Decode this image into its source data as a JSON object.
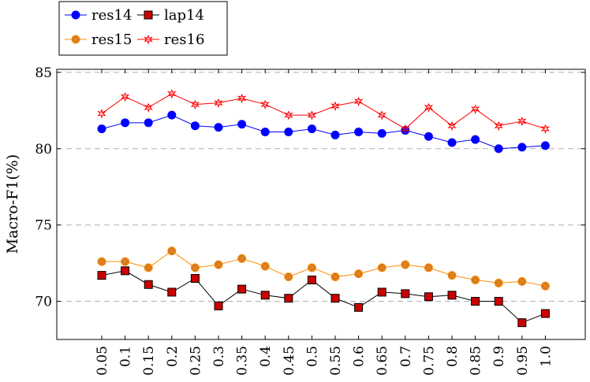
{
  "chart_data": {
    "type": "line",
    "title": "",
    "xlabel": "",
    "ylabel": "Macro-F1(%)",
    "x": [
      "0.05",
      "0.1",
      "0.15",
      "0.2",
      "0.25",
      "0.3",
      "0.35",
      "0.4",
      "0.45",
      "0.5",
      "0.55",
      "0.6",
      "0.65",
      "0.7",
      "0.75",
      "0.8",
      "0.85",
      "0.9",
      "0.95",
      "1.0"
    ],
    "ylim": [
      67.5,
      85.2
    ],
    "yticks": [
      70,
      75,
      80,
      85
    ],
    "grid": "horizontal dashed",
    "legend_position": "top-left",
    "series": [
      {
        "name": "res14",
        "color": "#0000ff",
        "marker": "circle",
        "values": [
          81.3,
          81.7,
          81.7,
          82.2,
          81.5,
          81.4,
          81.6,
          81.1,
          81.1,
          81.3,
          80.9,
          81.1,
          81.0,
          81.2,
          80.8,
          80.4,
          80.6,
          80.0,
          80.1,
          80.2
        ]
      },
      {
        "name": "lap14",
        "color": "#000000",
        "fill": "#cc0000",
        "marker": "square",
        "values": [
          71.7,
          72.0,
          71.1,
          70.6,
          71.5,
          69.7,
          70.8,
          70.4,
          70.2,
          71.4,
          70.2,
          69.6,
          70.6,
          70.5,
          70.3,
          70.4,
          70.0,
          70.0,
          68.6,
          69.2
        ]
      },
      {
        "name": "res15",
        "color": "#ff8c00",
        "fill": "#c87830",
        "marker": "circle-cross",
        "values": [
          72.6,
          72.6,
          72.2,
          73.3,
          72.2,
          72.4,
          72.8,
          72.3,
          71.6,
          72.2,
          71.6,
          71.8,
          72.2,
          72.4,
          72.2,
          71.7,
          71.4,
          71.2,
          71.3,
          71.0
        ]
      },
      {
        "name": "res16",
        "color": "#ff0000",
        "marker": "star",
        "values": [
          82.3,
          83.4,
          82.7,
          83.6,
          82.9,
          83.0,
          83.3,
          82.9,
          82.2,
          82.2,
          82.8,
          83.1,
          82.2,
          81.3,
          82.7,
          81.5,
          82.6,
          81.5,
          81.8,
          81.3
        ]
      }
    ]
  }
}
